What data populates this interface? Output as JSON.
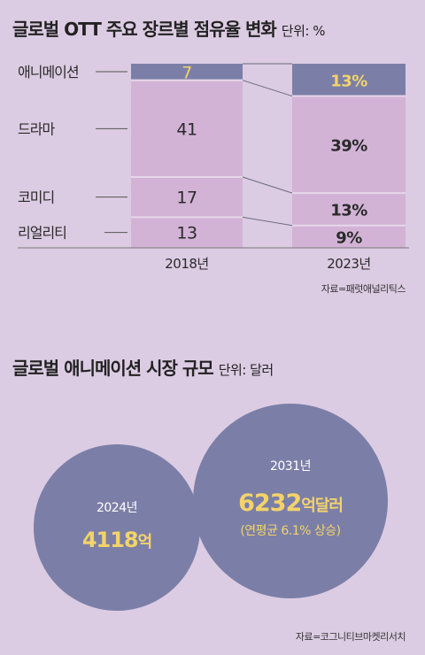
{
  "chart_data": [
    {
      "type": "bar",
      "stacked": true,
      "title": "글로벌 OTT 주요 장르별 점유율 변화",
      "unit": "단위: %",
      "categories": [
        "2018년",
        "2023년"
      ],
      "series": [
        {
          "name": "애니메이션",
          "values": [
            7,
            13
          ],
          "labels": [
            "7",
            "13%"
          ]
        },
        {
          "name": "드라마",
          "values": [
            41,
            39
          ],
          "labels": [
            "41",
            "39%"
          ]
        },
        {
          "name": "코미디",
          "values": [
            17,
            13
          ],
          "labels": [
            "17",
            "13%"
          ]
        },
        {
          "name": "리얼리티",
          "values": [
            13,
            9
          ],
          "labels": [
            "13",
            "9%"
          ]
        }
      ],
      "source": "자료=패럿애널리틱스"
    },
    {
      "type": "bubble",
      "title": "글로벌 애니메이션 시장 규모",
      "unit": "단위: 달러",
      "points": [
        {
          "year": "2024년",
          "value": 4118,
          "value_label": "4118",
          "suffix": "억"
        },
        {
          "year": "2031년",
          "value": 6232,
          "value_label": "6232",
          "suffix": "억달러",
          "note": "(연평균 6.1% 상승)"
        }
      ],
      "source": "자료=코그니티브마켓리서치"
    }
  ],
  "colors": {
    "background": "#dccce3",
    "animation": "#7b7fa8",
    "bar": "#d2b3d6",
    "bar_divider": "#e6d7ea",
    "bubble": "#7b7fa8",
    "highlight": "#f3d36a",
    "connector": "#6b6b7a"
  }
}
